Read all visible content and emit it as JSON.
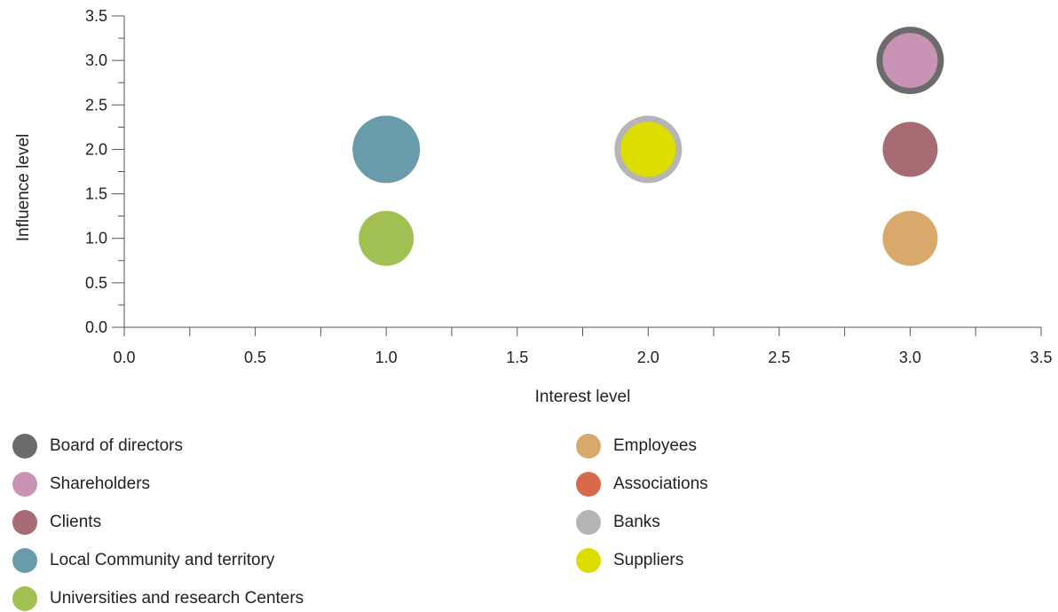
{
  "chart_data": {
    "type": "scatter",
    "title": "",
    "xlabel": "Interest level",
    "ylabel": "Influence level",
    "xlim": [
      0,
      3.5
    ],
    "ylim": [
      0,
      3.5
    ],
    "xticks": [
      "0.0",
      "0.5",
      "1.0",
      "1.5",
      "2.0",
      "2.5",
      "3.0",
      "3.5"
    ],
    "yticks": [
      "0.0",
      "0.5",
      "1.0",
      "1.5",
      "2.0",
      "2.5",
      "3.0",
      "3.5"
    ],
    "grid": false,
    "legend_position": "bottom",
    "series": [
      {
        "name": "Board of directors",
        "color": "#6b6b6b",
        "x": 3.0,
        "y": 3.0,
        "size": 3
      },
      {
        "name": "Shareholders",
        "color": "#c993b6",
        "x": 3.0,
        "y": 3.0,
        "size": 2
      },
      {
        "name": "Clients",
        "color": "#a86b74",
        "x": 3.0,
        "y": 2.0,
        "size": 2
      },
      {
        "name": "Local Community and territory",
        "color": "#6a9bab",
        "x": 1.0,
        "y": 2.0,
        "size": 3
      },
      {
        "name": "Universities and research Centers",
        "color": "#a2c052",
        "x": 1.0,
        "y": 1.0,
        "size": 2
      },
      {
        "name": "Employees",
        "color": "#d9a96b",
        "x": 3.0,
        "y": 1.0,
        "size": 2
      },
      {
        "name": "Associations",
        "color": "#d8694a",
        "x": null,
        "y": null,
        "size": null
      },
      {
        "name": "Banks",
        "color": "#b5b5b5",
        "x": 2.0,
        "y": 2.0,
        "size": 3
      },
      {
        "name": "Suppliers",
        "color": "#dddd00",
        "x": 2.0,
        "y": 2.0,
        "size": 2
      }
    ]
  }
}
